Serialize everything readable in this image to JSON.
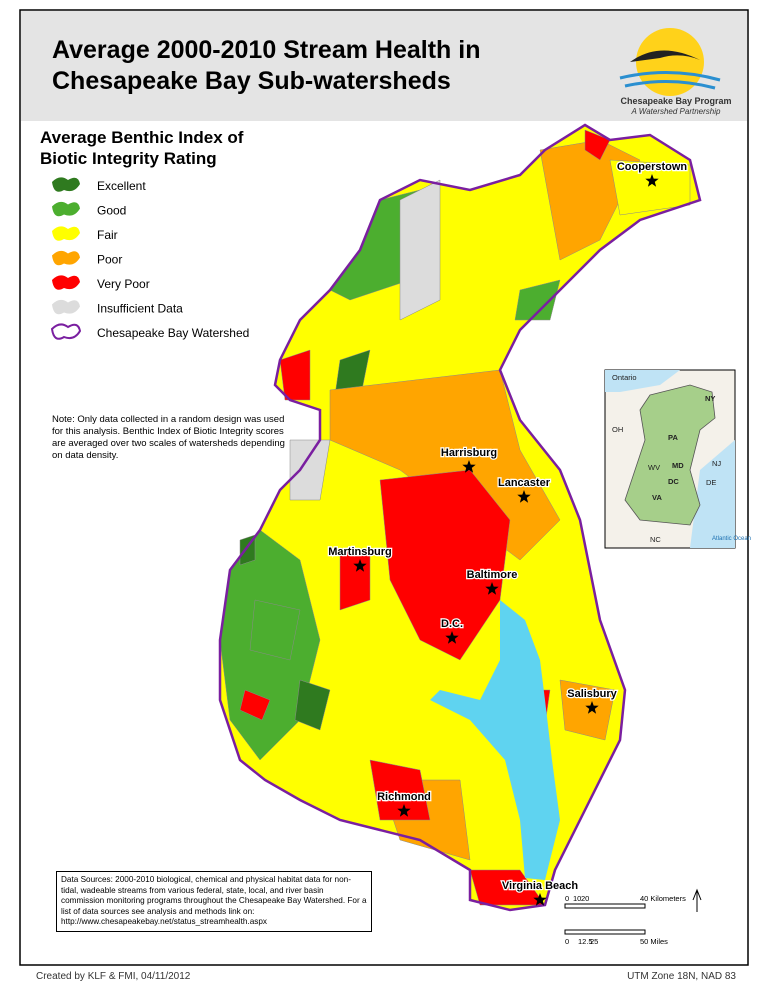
{
  "header": {
    "title": [
      "Average 2000-2010 Stream Health in",
      "Chesapeake Bay Sub-watersheds"
    ]
  },
  "logo": {
    "name": "Chesapeake Bay Program",
    "tagline": "A Watershed Partnership"
  },
  "legend": {
    "title": [
      "Average Benthic Index of",
      "Biotic Integrity Rating"
    ],
    "items": [
      {
        "label": "Excellent",
        "color": "#2f7a1f"
      },
      {
        "label": "Good",
        "color": "#4cae2f"
      },
      {
        "label": "Fair",
        "color": "#ffff00"
      },
      {
        "label": "Poor",
        "color": "#ffa500"
      },
      {
        "label": "Very Poor",
        "color": "#ff0000"
      },
      {
        "label": "Insufficient Data",
        "color": "#dcdcdc"
      },
      {
        "label": "Chesapeake Bay Watershed",
        "color": "#7a1fa0"
      }
    ]
  },
  "note": "Note: Only data collected in a random design was used for this analysis. Benthic Index of Biotic Integrity scores are averaged over two scales of watersheds depending on data density.",
  "cities": [
    "Cooperstown",
    "Harrisburg",
    "Lancaster",
    "Martinsburg",
    "Baltimore",
    "D.C.",
    "Salisbury",
    "Richmond",
    "Virginia Beach"
  ],
  "inset": {
    "labels": [
      "Ontario",
      "NY",
      "OH",
      "PA",
      "NJ",
      "MD",
      "WV",
      "DC",
      "DE",
      "VA",
      "NC",
      "Atlantic Ocean"
    ]
  },
  "sources": "Data Sources: 2000-2010 biological, chemical and physical habitat data for non-tidal, wadeable streams from various federal, state, local, and river basin commission monitoring programs throughout the Chesapeake Bay Watershed. For a list of data sources see analysis and methods link on: http://www.chesapeakebay.net/status_streamhealth.aspx",
  "scale": {
    "km": [
      "0",
      "10",
      "20",
      "40 Kilometers"
    ],
    "miles": [
      "0",
      "12.5",
      "25",
      "50 Miles"
    ]
  },
  "footer": {
    "credit": "Created by KLF & FMI, 04/11/2012",
    "projection": "UTM Zone 18N, NAD 83"
  }
}
